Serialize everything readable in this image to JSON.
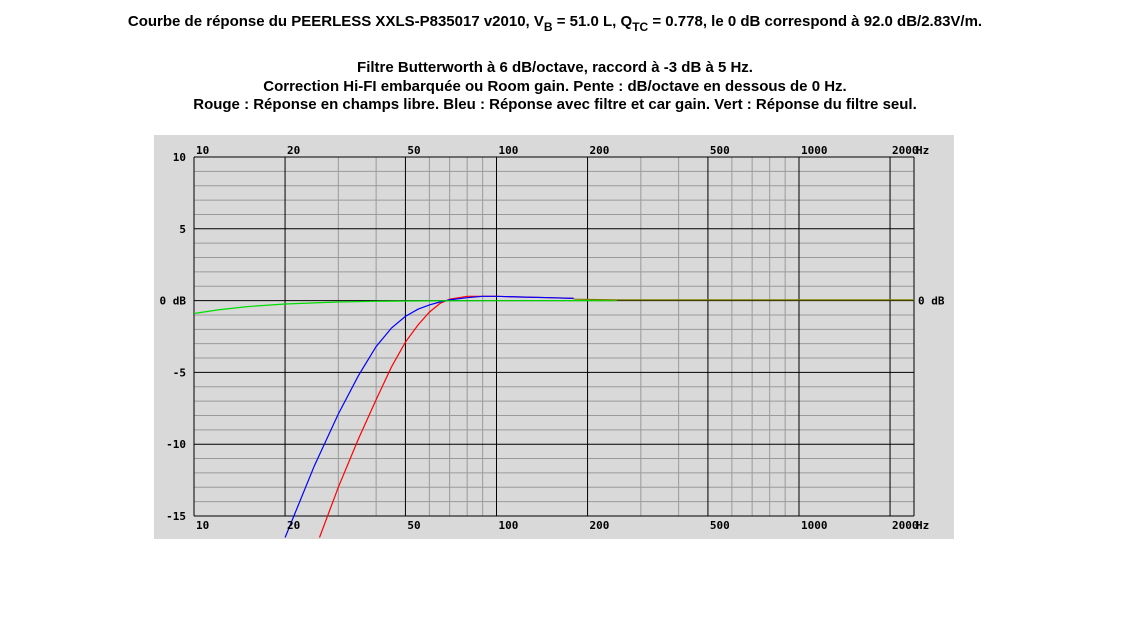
{
  "title": {
    "prefix": "Courbe de réponse du PEERLESS XXLS-P835017 v2010, V",
    "vb_sub": "B",
    "vb_rest": " = 51.0 L, Q",
    "qtc_sub": "TC",
    "rest": " = 0.778, le 0 dB correspond à 92.0 dB/2.83V/m."
  },
  "subtitle_lines": [
    "Filtre Butterworth à 6 dB/octave, raccord à -3 dB à 5 Hz.",
    "Correction Hi-FI embarquée ou Room gain. Pente : dB/octave en dessous de 0 Hz.",
    "Rouge : Réponse en champs libre. Bleu : Réponse avec filtre et car gain. Vert : Réponse du filtre seul."
  ],
  "colors": {
    "plot_background": "#d9d9d9",
    "grid_major": "#000000",
    "grid_minor": "#9a9a9a",
    "red": "#ff0000",
    "blue": "#0000ff",
    "green": "#00dd00",
    "olive": "#808000"
  },
  "chart_data": {
    "type": "line",
    "x_scale": "log",
    "xlim": [
      10,
      2400
    ],
    "ylim": [
      -15,
      10
    ],
    "x_unit": "Hz",
    "x_tick_labels": [
      {
        "value": 10,
        "label": "10"
      },
      {
        "value": 20,
        "label": "20"
      },
      {
        "value": 50,
        "label": "50"
      },
      {
        "value": 100,
        "label": "100"
      },
      {
        "value": 200,
        "label": "200"
      },
      {
        "value": 500,
        "label": "500"
      },
      {
        "value": 1000,
        "label": "1000"
      },
      {
        "value": 2000,
        "label": "2000"
      }
    ],
    "y_tick_labels": [
      {
        "value": 10,
        "label": "10"
      },
      {
        "value": 5,
        "label": "5"
      },
      {
        "value": 0,
        "label": "0 dB"
      },
      {
        "value": -5,
        "label": "-5"
      },
      {
        "value": -10,
        "label": "-10"
      },
      {
        "value": -15,
        "label": "-15"
      }
    ],
    "right_label": "0 dB",
    "grid": true,
    "series": [
      {
        "color": "red",
        "x": [
          26,
          30,
          35,
          40,
          45,
          50,
          55,
          60,
          65,
          70,
          80,
          90,
          100,
          120,
          150,
          180
        ],
        "y": [
          -16.5,
          -13.0,
          -9.6,
          -6.9,
          -4.6,
          -2.9,
          -1.7,
          -0.8,
          -0.2,
          0.1,
          0.3,
          0.3,
          0.3,
          0.25,
          0.2,
          0.15
        ]
      },
      {
        "color": "blue",
        "x": [
          20,
          25,
          30,
          35,
          40,
          45,
          50,
          55,
          60,
          65,
          70,
          80,
          90,
          100,
          120,
          150,
          180
        ],
        "y": [
          -16.5,
          -11.5,
          -7.9,
          -5.2,
          -3.2,
          -1.9,
          -1.1,
          -0.6,
          -0.3,
          -0.1,
          0.05,
          0.2,
          0.3,
          0.3,
          0.25,
          0.2,
          0.15
        ]
      },
      {
        "color": "green",
        "x": [
          10,
          12,
          15,
          20,
          25,
          30,
          40,
          60,
          100,
          250
        ],
        "y": [
          -0.9,
          -0.65,
          -0.42,
          -0.24,
          -0.16,
          -0.1,
          -0.05,
          -0.02,
          -0.01,
          0
        ]
      },
      {
        "color": "olive",
        "x": [
          180,
          250,
          500,
          1000,
          2000,
          2400
        ],
        "y": [
          0.1,
          0.05,
          0.05,
          0.05,
          0.05,
          0.05
        ]
      }
    ]
  }
}
